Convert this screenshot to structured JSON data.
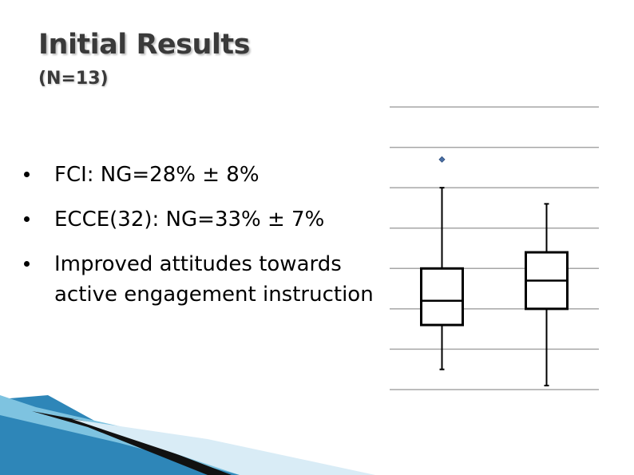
{
  "slide": {
    "title": "Initial Results",
    "subtitle": "(N=13)"
  },
  "bullets": [
    {
      "text": "FCI: NG=28% ± 8%"
    },
    {
      "line1": "ECCE(32): NG=33% ± 7%"
    },
    {
      "line1": "Improved attitudes towards",
      "line2": "active engagement instruction"
    }
  ],
  "chart_data": {
    "type": "box",
    "title": "",
    "xlabel": "",
    "ylabel": "",
    "grid": true,
    "gridlines_y": [
      0,
      0.1,
      0.2,
      0.3,
      0.4,
      0.5,
      0.6,
      0.7
    ],
    "ylim": [
      0,
      0.7
    ],
    "series": [
      {
        "min": 0.05,
        "q1": 0.16,
        "median": 0.22,
        "q3": 0.3,
        "max": 0.5,
        "outliers": [
          0.57
        ]
      },
      {
        "min": 0.01,
        "q1": 0.2,
        "median": 0.27,
        "q3": 0.34,
        "max": 0.46,
        "outliers": []
      }
    ],
    "colors": {
      "box": "#000000",
      "grid": "#a6a6a6",
      "outlier_fill": "#4a6fa5"
    }
  }
}
